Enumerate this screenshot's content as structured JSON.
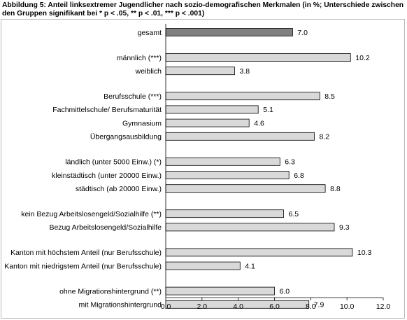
{
  "caption": {
    "line1": "Abbildung 5: Anteil linksextremer Jugendlicher nach sozio-demografischen Merkmalen (in %; Unterschiede zwischen",
    "line2": "den Gruppen signifikant bei * p < .05, ** p < .01, *** p < .001)"
  },
  "chart_data": {
    "type": "bar",
    "orientation": "horizontal",
    "categories": [
      "gesamt",
      "männlich (***)",
      "weiblich",
      "Berufsschule (***)",
      "Fachmittelschule/ Berufsmaturität",
      "Gymnasium",
      "Übergangsausbildung",
      "ländlich (unter 5000 Einw.) (*)",
      "kleinstädtisch (unter 20000 Einw.)",
      "städtisch (ab 20000 Einw.)",
      "kein Bezug Arbeitslosengeld/Sozialhilfe (**)",
      "Bezug Arbeitslosengeld/Sozialhilfe",
      "Kanton mit höchstem Anteil (nur Berufsschule)",
      "Kanton mit niedrigstem Anteil (nur Berufsschule)",
      "ohne Migrationshintergrund (**)",
      "mit Migrationshintergrund"
    ],
    "values": [
      7.0,
      10.2,
      3.8,
      8.5,
      5.1,
      4.6,
      8.2,
      6.3,
      6.8,
      8.8,
      6.5,
      9.3,
      10.3,
      4.1,
      6.0,
      7.9
    ],
    "value_labels": [
      "7.0",
      "10.2",
      "3.8",
      "8.5",
      "5.1",
      "4.6",
      "8.2",
      "6.3",
      "6.8",
      "8.8",
      "6.5",
      "9.3",
      "10.3",
      "4.1",
      "6.0",
      "7.9"
    ],
    "groups": [
      [
        0
      ],
      [
        1,
        2
      ],
      [
        3,
        4,
        5,
        6
      ],
      [
        7,
        8,
        9
      ],
      [
        10,
        11
      ],
      [
        12,
        13
      ],
      [
        14,
        15
      ]
    ],
    "xlim": [
      0,
      12
    ],
    "xticks": [
      0,
      2,
      4,
      6,
      8,
      10,
      12
    ],
    "xtick_labels": [
      "0.0",
      "2.0",
      "4.0",
      "6.0",
      "8.0",
      "10.0",
      "12.0"
    ],
    "grid": false,
    "colors": {
      "highlight": "#808080",
      "bar": "#d9d9d9",
      "bar_border": "#000000"
    }
  }
}
